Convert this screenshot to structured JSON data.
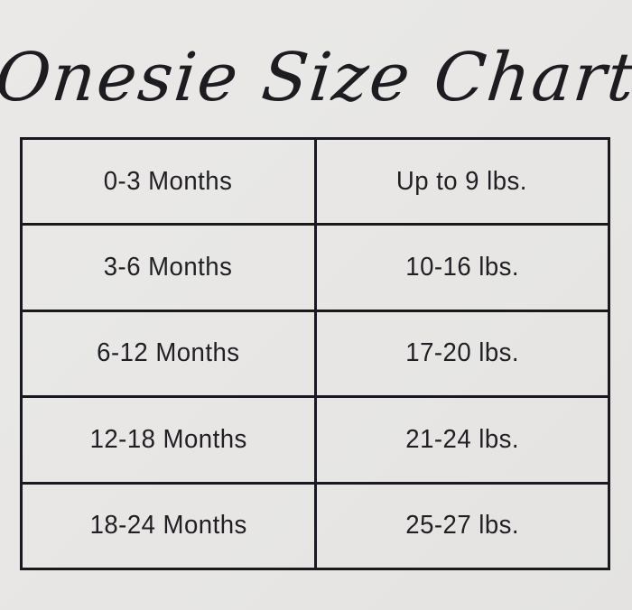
{
  "title": "Onesie Size Chart",
  "colors": {
    "background": "#e8e7e5",
    "border": "#1a1920",
    "text": "#201f24",
    "title_text": "#1d1c20"
  },
  "chart_data": {
    "type": "table",
    "title": "Onesie Size Chart",
    "grid": "on",
    "rows": [
      [
        "0-3 Months",
        "Up to 9 lbs."
      ],
      [
        "3-6 Months",
        "10-16 lbs."
      ],
      [
        "6-12 Months",
        "17-20 lbs."
      ],
      [
        "12-18 Months",
        "21-24 lbs."
      ],
      [
        "18-24 Months",
        "25-27 lbs."
      ]
    ]
  }
}
